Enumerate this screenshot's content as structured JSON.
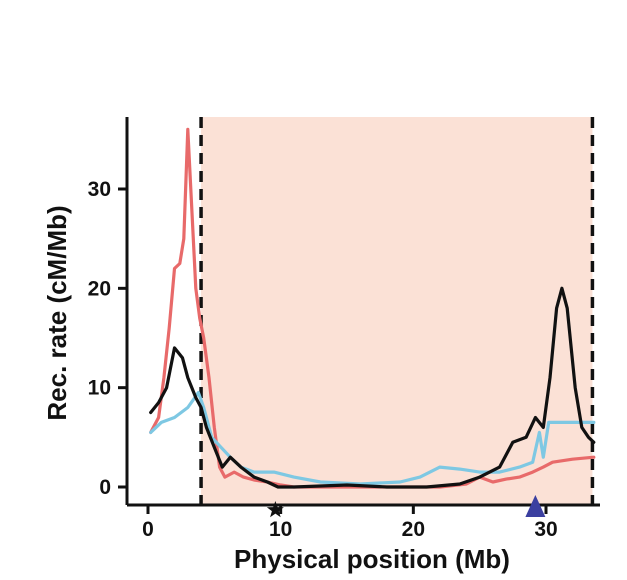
{
  "chart_data": {
    "type": "line",
    "title": "",
    "xlabel": "Physical position (Mb)",
    "ylabel": "Rec. rate (cM/Mb)",
    "xlim": [
      -1.5,
      34.5
    ],
    "ylim": [
      -2.5,
      37
    ],
    "x_ticks": [
      0,
      10,
      20,
      30
    ],
    "y_ticks": [
      0,
      10,
      20,
      30
    ],
    "shaded_region": {
      "x_start": 4.0,
      "x_end": 33.5,
      "color": "#fbe1d6"
    },
    "boundaries": [
      4.0,
      33.5
    ],
    "markers": [
      {
        "kind": "star",
        "x": 9.6,
        "color": "#111111"
      },
      {
        "kind": "triangle",
        "x": 29.2,
        "color": "#3b3fa0"
      }
    ],
    "series": [
      {
        "color": "#e86a6a",
        "points": [
          [
            0.2,
            5.5
          ],
          [
            0.8,
            7
          ],
          [
            1.2,
            11
          ],
          [
            1.6,
            16
          ],
          [
            2.0,
            22
          ],
          [
            2.4,
            22.5
          ],
          [
            2.7,
            25
          ],
          [
            3.0,
            36
          ],
          [
            3.3,
            28
          ],
          [
            3.6,
            20
          ],
          [
            3.9,
            17
          ],
          [
            4.2,
            15
          ],
          [
            4.6,
            11
          ],
          [
            5.0,
            6
          ],
          [
            5.4,
            2
          ],
          [
            5.8,
            1
          ],
          [
            6.5,
            1.5
          ],
          [
            7.2,
            1
          ],
          [
            8.0,
            0.7
          ],
          [
            9.0,
            0.5
          ],
          [
            10,
            0.2
          ],
          [
            11,
            0
          ],
          [
            14,
            0
          ],
          [
            18,
            0
          ],
          [
            22,
            0
          ],
          [
            24,
            0.3
          ],
          [
            25,
            1
          ],
          [
            26,
            0.5
          ],
          [
            27,
            0.8
          ],
          [
            28,
            1
          ],
          [
            29,
            1.5
          ],
          [
            29.8,
            2
          ],
          [
            30.5,
            2.5
          ],
          [
            32,
            2.8
          ],
          [
            33.6,
            3
          ]
        ]
      },
      {
        "color": "#7ec8e3",
        "points": [
          [
            0.2,
            5.5
          ],
          [
            1.0,
            6.5
          ],
          [
            2.0,
            7
          ],
          [
            3.0,
            8
          ],
          [
            3.8,
            9.5
          ],
          [
            4.2,
            8
          ],
          [
            4.8,
            5
          ],
          [
            5.5,
            4
          ],
          [
            6.2,
            3
          ],
          [
            7.0,
            2
          ],
          [
            8.0,
            1.5
          ],
          [
            9.5,
            1.5
          ],
          [
            11,
            1
          ],
          [
            13,
            0.5
          ],
          [
            16,
            0.3
          ],
          [
            19,
            0.5
          ],
          [
            20.5,
            1
          ],
          [
            22,
            2
          ],
          [
            23.5,
            1.8
          ],
          [
            25,
            1.5
          ],
          [
            26.5,
            1.5
          ],
          [
            28,
            2
          ],
          [
            29,
            2.5
          ],
          [
            29.5,
            5.5
          ],
          [
            29.8,
            3
          ],
          [
            30.2,
            6.5
          ],
          [
            31,
            6.5
          ],
          [
            32.5,
            6.5
          ],
          [
            33.6,
            6.5
          ]
        ]
      },
      {
        "color": "#111111",
        "points": [
          [
            0.2,
            7.5
          ],
          [
            0.8,
            8.5
          ],
          [
            1.4,
            10
          ],
          [
            2.0,
            14
          ],
          [
            2.6,
            13
          ],
          [
            3.0,
            11
          ],
          [
            3.6,
            9
          ],
          [
            4.0,
            8
          ],
          [
            4.4,
            6
          ],
          [
            5.0,
            4
          ],
          [
            5.6,
            2
          ],
          [
            6.2,
            3
          ],
          [
            7.0,
            2
          ],
          [
            8.0,
            1
          ],
          [
            9.0,
            0.5
          ],
          [
            9.8,
            0
          ],
          [
            11,
            0
          ],
          [
            15,
            0.2
          ],
          [
            18,
            0
          ],
          [
            21,
            0
          ],
          [
            23.5,
            0.3
          ],
          [
            25,
            1
          ],
          [
            26.5,
            2
          ],
          [
            27.5,
            4.5
          ],
          [
            28.5,
            5
          ],
          [
            29.2,
            7
          ],
          [
            29.8,
            6
          ],
          [
            30.3,
            11
          ],
          [
            30.8,
            18
          ],
          [
            31.2,
            20
          ],
          [
            31.6,
            18
          ],
          [
            32.2,
            10
          ],
          [
            32.7,
            6
          ],
          [
            33.2,
            5
          ],
          [
            33.6,
            4.5
          ]
        ]
      }
    ]
  }
}
